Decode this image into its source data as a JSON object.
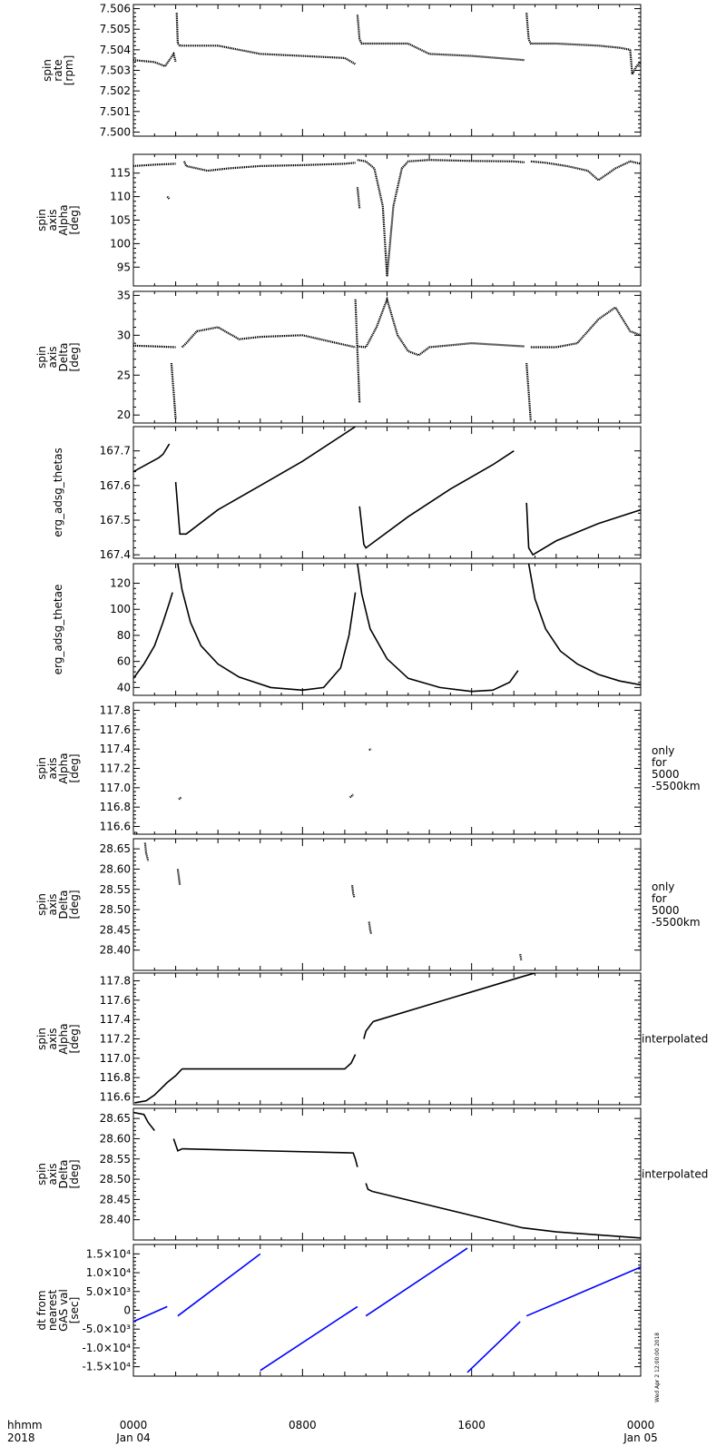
{
  "footer": {
    "row1_label": "hhmm",
    "row2_label": "2018",
    "x_ticks": [
      {
        "hour": 0,
        "time": "0000",
        "date": "Jan 04"
      },
      {
        "hour": 8,
        "time": "0800",
        "date": ""
      },
      {
        "hour": 16,
        "time": "1600",
        "date": ""
      },
      {
        "hour": 24,
        "time": "0000",
        "date": "Jan 05"
      }
    ],
    "stamp": "Wed Apr  2 12:00:00 2018"
  },
  "colors": {
    "axis": "#000000",
    "data": "#000000",
    "blue": "#0000ff"
  },
  "chart_data": [
    {
      "type": "scatter",
      "ylabel": [
        "spin",
        "rate",
        "[rpm]"
      ],
      "right_note": [],
      "ylim": [
        7.4998,
        7.5062
      ],
      "ticks": [
        {
          "v": 7.5,
          "t": "7.500"
        },
        {
          "v": 7.501,
          "t": "7.501"
        },
        {
          "v": 7.502,
          "t": "7.502"
        },
        {
          "v": 7.503,
          "t": "7.503"
        },
        {
          "v": 7.504,
          "t": "7.504"
        },
        {
          "v": 7.505,
          "t": "7.505"
        },
        {
          "v": 7.506,
          "t": "7.506"
        }
      ],
      "segments": [
        {
          "x": [
            0.0,
            1.0,
            1.5,
            1.9,
            2.0
          ],
          "y": [
            7.5035,
            7.5034,
            7.5032,
            7.5038,
            7.5034
          ]
        },
        {
          "x": [
            2.05,
            2.1,
            2.2,
            4.0,
            6.0,
            8.0,
            10.0,
            10.5
          ],
          "y": [
            7.5058,
            7.5043,
            7.5042,
            7.5042,
            7.5038,
            7.5037,
            7.5036,
            7.5033
          ]
        },
        {
          "x": [
            10.6,
            10.7,
            10.8,
            13.0,
            14.0,
            16.0,
            18.5
          ],
          "y": [
            7.5057,
            7.5045,
            7.5043,
            7.5043,
            7.5038,
            7.5037,
            7.5035
          ]
        },
        {
          "x": [
            18.6,
            18.7,
            18.8,
            20.0,
            22.0,
            23.0,
            23.5
          ],
          "y": [
            7.5058,
            7.5045,
            7.5043,
            7.5043,
            7.5042,
            7.5041,
            7.504
          ]
        },
        {
          "x": [
            23.5,
            23.6,
            23.8,
            24.0
          ],
          "y": [
            7.504,
            7.5028,
            7.5032,
            7.5034
          ]
        }
      ]
    },
    {
      "type": "scatter",
      "ylabel": [
        "spin",
        "axis",
        "Alpha",
        "[deg]"
      ],
      "right_note": [],
      "ylim": [
        91.0,
        119.0
      ],
      "ticks": [
        {
          "v": 95,
          "t": "95"
        },
        {
          "v": 100,
          "t": "100"
        },
        {
          "v": 105,
          "t": "105"
        },
        {
          "v": 110,
          "t": "110"
        },
        {
          "v": 115,
          "t": "115"
        }
      ],
      "segments": [
        {
          "x": [
            0.0,
            1.0,
            2.0
          ],
          "y": [
            116.5,
            116.8,
            117.0
          ]
        },
        {
          "x": [
            2.4,
            2.5,
            3.5,
            4.5,
            6.0,
            8.0,
            10.0,
            10.5
          ],
          "y": [
            117.5,
            116.5,
            115.5,
            116.0,
            116.5,
            116.7,
            117.0,
            117.2
          ]
        },
        {
          "x": [
            10.6,
            11.0,
            11.4,
            11.8,
            12.0,
            12.3,
            12.7,
            13.0,
            14.0,
            16.0,
            18.0,
            18.5
          ],
          "y": [
            117.8,
            117.5,
            116.0,
            108.0,
            93.0,
            108.0,
            116.0,
            117.5,
            117.8,
            117.6,
            117.5,
            117.3
          ]
        },
        {
          "x": [
            18.8,
            19.5,
            20.5,
            21.5,
            22.0,
            22.8,
            23.5,
            24.0
          ],
          "y": [
            117.5,
            117.2,
            116.5,
            115.5,
            113.5,
            116.0,
            117.5,
            117.0
          ]
        },
        {
          "x": [
            1.6,
            1.7
          ],
          "y": [
            110.0,
            109.5
          ]
        },
        {
          "x": [
            10.6,
            10.7
          ],
          "y": [
            112.0,
            107.5
          ]
        }
      ]
    },
    {
      "type": "scatter",
      "ylabel": [
        "spin",
        "axis",
        "Delta",
        "[deg]"
      ],
      "right_note": [],
      "ylim": [
        19.0,
        35.5
      ],
      "ticks": [
        {
          "v": 20,
          "t": "20"
        },
        {
          "v": 25,
          "t": "25"
        },
        {
          "v": 30,
          "t": "30"
        },
        {
          "v": 35,
          "t": "35"
        }
      ],
      "segments": [
        {
          "x": [
            0.0,
            1.0,
            2.0
          ],
          "y": [
            28.7,
            28.6,
            28.5
          ]
        },
        {
          "x": [
            2.3,
            2.5,
            3.0,
            4.0,
            5.0,
            6.0,
            8.0,
            10.0,
            10.5
          ],
          "y": [
            28.5,
            29.0,
            30.5,
            31.0,
            29.5,
            29.8,
            30.0,
            28.8,
            28.5
          ]
        },
        {
          "x": [
            10.6,
            11.0,
            11.5,
            12.0,
            12.5,
            13.0,
            13.5,
            14.0,
            16.0,
            18.5
          ],
          "y": [
            28.6,
            28.5,
            31.0,
            34.5,
            30.0,
            28.0,
            27.5,
            28.5,
            29.0,
            28.6
          ]
        },
        {
          "x": [
            18.8,
            20.0,
            21.0,
            22.0,
            22.8,
            23.5,
            24.0
          ],
          "y": [
            28.5,
            28.5,
            29.0,
            32.0,
            33.5,
            30.5,
            30.0
          ]
        },
        {
          "x": [
            1.8,
            2.0
          ],
          "y": [
            26.5,
            19.5
          ]
        },
        {
          "x": [
            10.5,
            10.7
          ],
          "y": [
            34.5,
            21.5
          ]
        },
        {
          "x": [
            18.6,
            18.8
          ],
          "y": [
            26.5,
            19.2
          ]
        }
      ]
    },
    {
      "type": "line",
      "ylabel": [
        "erg_adsg_thetas"
      ],
      "right_note": [],
      "ylim": [
        167.39,
        167.77
      ],
      "ticks": [
        {
          "v": 167.4,
          "t": "167.4"
        },
        {
          "v": 167.5,
          "t": "167.5"
        },
        {
          "v": 167.6,
          "t": "167.6"
        },
        {
          "v": 167.7,
          "t": "167.7"
        }
      ],
      "segments": [
        {
          "x": [
            0.0,
            1.2,
            1.4,
            1.7
          ],
          "y": [
            167.64,
            167.68,
            167.69,
            167.72
          ]
        },
        {
          "x": [
            2.0,
            2.2,
            2.5,
            4.0,
            6.0,
            8.0,
            10.5
          ],
          "y": [
            167.61,
            167.46,
            167.46,
            167.53,
            167.6,
            167.67,
            167.77
          ]
        },
        {
          "x": [
            10.7,
            10.9,
            11.0,
            13.0,
            15.0,
            17.0,
            18.0
          ],
          "y": [
            167.54,
            167.43,
            167.42,
            167.51,
            167.59,
            167.66,
            167.7
          ]
        },
        {
          "x": [
            18.6,
            18.7,
            18.9,
            20.0,
            22.0,
            24.0
          ],
          "y": [
            167.55,
            167.42,
            167.4,
            167.44,
            167.49,
            167.53
          ]
        }
      ]
    },
    {
      "type": "line",
      "ylabel": [
        "erg_adsg_thetae"
      ],
      "right_note": [],
      "ylim": [
        34.0,
        135.0
      ],
      "ticks": [
        {
          "v": 40,
          "t": "40"
        },
        {
          "v": 60,
          "t": "60"
        },
        {
          "v": 80,
          "t": "80"
        },
        {
          "v": 100,
          "t": "100"
        },
        {
          "v": 120,
          "t": "120"
        }
      ],
      "segments": [
        {
          "x": [
            0.0,
            0.5,
            1.0,
            1.4,
            1.7,
            1.85
          ],
          "y": [
            47.0,
            58.0,
            72.0,
            90.0,
            105.0,
            113.0
          ]
        },
        {
          "x": [
            2.1,
            2.3,
            2.7,
            3.2,
            4.0,
            5.0,
            6.5,
            8.0,
            9.0,
            9.8,
            10.2,
            10.5
          ],
          "y": [
            135.0,
            115.0,
            90.0,
            72.0,
            58.0,
            48.0,
            40.0,
            38.0,
            40.0,
            55.0,
            80.0,
            113.0
          ]
        },
        {
          "x": [
            10.6,
            10.8,
            11.2,
            12.0,
            13.0,
            14.5,
            16.0,
            17.0,
            17.8,
            18.2
          ],
          "y": [
            135.0,
            112.0,
            85.0,
            62.0,
            47.0,
            40.0,
            37.0,
            38.0,
            44.0,
            53.0
          ]
        },
        {
          "x": [
            18.7,
            19.0,
            19.5,
            20.2,
            21.0,
            22.0,
            23.0,
            24.0
          ],
          "y": [
            135.0,
            108.0,
            85.0,
            68.0,
            58.0,
            50.0,
            45.0,
            42.0
          ]
        }
      ]
    },
    {
      "type": "scatter",
      "ylabel": [
        "spin",
        "axis",
        "Alpha",
        "[deg]"
      ],
      "right_note": [
        "only",
        "for",
        "5000",
        "-5500km"
      ],
      "ylim": [
        116.52,
        117.88
      ],
      "ticks": [
        {
          "v": 116.6,
          "t": "116.6"
        },
        {
          "v": 116.8,
          "t": "116.8"
        },
        {
          "v": 117.0,
          "t": "117.0"
        },
        {
          "v": 117.2,
          "t": "117.2"
        },
        {
          "v": 117.4,
          "t": "117.4"
        },
        {
          "v": 117.6,
          "t": "117.6"
        },
        {
          "v": 117.8,
          "t": "117.8"
        }
      ],
      "segments": [
        {
          "x": [
            0.05,
            0.2
          ],
          "y": [
            116.54,
            116.53
          ]
        },
        {
          "x": [
            2.15,
            2.25
          ],
          "y": [
            116.88,
            116.9
          ]
        },
        {
          "x": [
            10.25,
            10.4
          ],
          "y": [
            116.9,
            116.93
          ]
        },
        {
          "x": [
            11.15,
            11.25
          ],
          "y": [
            117.39,
            117.4
          ]
        }
      ]
    },
    {
      "type": "scatter",
      "ylabel": [
        "spin",
        "axis",
        "Delta",
        "[deg]"
      ],
      "right_note": [
        "only",
        "for",
        "5000",
        "-5500km"
      ],
      "ylim": [
        28.35,
        28.675
      ],
      "ticks": [
        {
          "v": 28.4,
          "t": "28.40"
        },
        {
          "v": 28.45,
          "t": "28.45"
        },
        {
          "v": 28.5,
          "t": "28.50"
        },
        {
          "v": 28.55,
          "t": "28.55"
        },
        {
          "v": 28.6,
          "t": "28.60"
        },
        {
          "v": 28.65,
          "t": "28.65"
        }
      ],
      "segments": [
        {
          "x": [
            0.55,
            0.6,
            0.7
          ],
          "y": [
            28.665,
            28.64,
            28.62
          ]
        },
        {
          "x": [
            2.1,
            2.15,
            2.2
          ],
          "y": [
            28.6,
            28.58,
            28.56
          ]
        },
        {
          "x": [
            10.35,
            10.4,
            10.45
          ],
          "y": [
            28.56,
            28.54,
            28.53
          ]
        },
        {
          "x": [
            11.15,
            11.2,
            11.25
          ],
          "y": [
            28.47,
            28.45,
            28.44
          ]
        },
        {
          "x": [
            18.3,
            18.35
          ],
          "y": [
            28.39,
            28.375
          ]
        }
      ]
    },
    {
      "type": "line",
      "ylabel": [
        "spin",
        "axis",
        "Alpha",
        "[deg]"
      ],
      "right_note": [
        "interpolated"
      ],
      "ylim": [
        116.52,
        117.88
      ],
      "ticks": [
        {
          "v": 116.6,
          "t": "116.6"
        },
        {
          "v": 116.8,
          "t": "116.8"
        },
        {
          "v": 117.0,
          "t": "117.0"
        },
        {
          "v": 117.2,
          "t": "117.2"
        },
        {
          "v": 117.4,
          "t": "117.4"
        },
        {
          "v": 117.6,
          "t": "117.6"
        },
        {
          "v": 117.8,
          "t": "117.8"
        }
      ],
      "segments": [
        {
          "x": [
            0.05,
            0.6,
            1.0,
            1.6,
            2.0,
            2.3
          ],
          "y": [
            116.54,
            116.56,
            116.62,
            116.75,
            116.82,
            116.89
          ]
        },
        {
          "x": [
            2.3,
            10.0,
            10.3,
            10.5
          ],
          "y": [
            116.89,
            116.89,
            116.95,
            117.04
          ]
        },
        {
          "x": [
            10.9,
            11.0,
            11.2,
            11.35
          ],
          "y": [
            117.2,
            117.28,
            117.34,
            117.38
          ]
        },
        {
          "x": [
            11.35,
            18.5,
            19.0
          ],
          "y": [
            117.38,
            117.85,
            117.88
          ]
        }
      ]
    },
    {
      "type": "line",
      "ylabel": [
        "spin",
        "axis",
        "Delta",
        "[deg]"
      ],
      "right_note": [
        "interpolated"
      ],
      "ylim": [
        28.35,
        28.675
      ],
      "ticks": [
        {
          "v": 28.4,
          "t": "28.40"
        },
        {
          "v": 28.45,
          "t": "28.45"
        },
        {
          "v": 28.5,
          "t": "28.50"
        },
        {
          "v": 28.55,
          "t": "28.55"
        },
        {
          "v": 28.6,
          "t": "28.60"
        },
        {
          "v": 28.65,
          "t": "28.65"
        }
      ],
      "segments": [
        {
          "x": [
            0.0,
            0.5,
            0.7,
            1.0
          ],
          "y": [
            28.665,
            28.66,
            28.64,
            28.62
          ]
        },
        {
          "x": [
            1.9,
            2.1,
            2.3
          ],
          "y": [
            28.6,
            28.57,
            28.575
          ]
        },
        {
          "x": [
            2.3,
            10.4,
            10.5,
            10.6
          ],
          "y": [
            28.575,
            28.565,
            28.55,
            28.53
          ]
        },
        {
          "x": [
            11.0,
            11.1,
            11.3
          ],
          "y": [
            28.49,
            28.475,
            28.47
          ]
        },
        {
          "x": [
            11.3,
            18.4,
            20.0,
            24.0
          ],
          "y": [
            28.47,
            28.38,
            28.37,
            28.355
          ]
        }
      ]
    },
    {
      "type": "line",
      "ylabel": [
        "dt from",
        "nearest",
        "GAS val",
        "[sec]"
      ],
      "right_note": [],
      "color": "#0000ff",
      "ylim": [
        -17500,
        17500
      ],
      "ticks": [
        {
          "v": -15000,
          "t": "-1.5×10⁴"
        },
        {
          "v": -10000,
          "t": "-1.0×10⁴"
        },
        {
          "v": -5000,
          "t": "-5.0×10³"
        },
        {
          "v": 0,
          "t": "0"
        },
        {
          "v": 5000,
          "t": "5.0×10³"
        },
        {
          "v": 10000,
          "t": "1.0×10⁴"
        },
        {
          "v": 15000,
          "t": "1.5×10⁴"
        }
      ],
      "segments": [
        {
          "x": [
            0.0,
            1.6
          ],
          "y": [
            -3000,
            1000
          ]
        },
        {
          "x": [
            2.1,
            6.0
          ],
          "y": [
            -1500,
            15000
          ]
        },
        {
          "x": [
            6.0,
            10.6
          ],
          "y": [
            -16000,
            1000
          ]
        },
        {
          "x": [
            11.0,
            15.8
          ],
          "y": [
            -1500,
            16500
          ]
        },
        {
          "x": [
            15.8,
            18.3
          ],
          "y": [
            -16500,
            -3000
          ]
        },
        {
          "x": [
            18.6,
            24.0
          ],
          "y": [
            -1500,
            11500
          ]
        }
      ]
    }
  ]
}
